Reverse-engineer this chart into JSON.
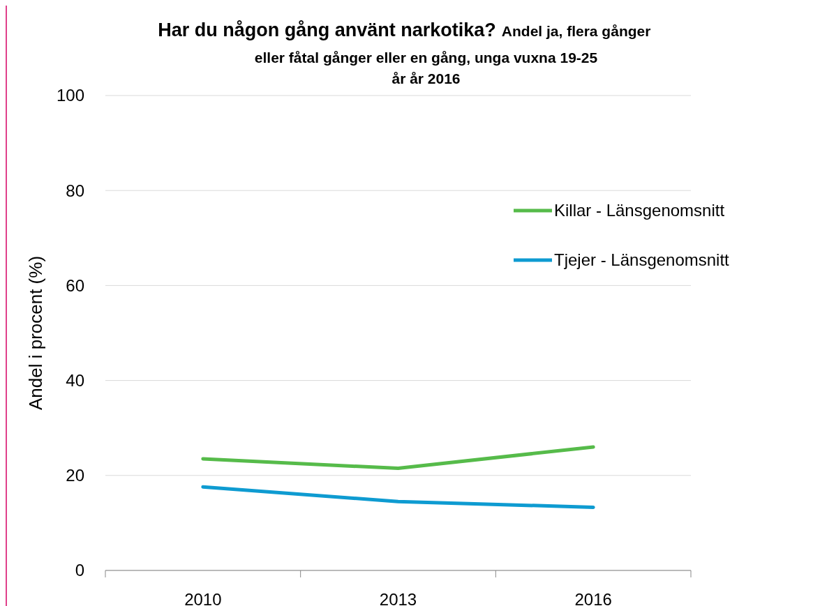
{
  "chart_data": {
    "type": "line",
    "title": "Har du någon gång använt narkotika?",
    "subtitle": "Andel ja, flera gånger eller fåtal gånger eller en gång, unga vuxna 19-25 år år 2016",
    "ylabel": "Andel i procent (%)",
    "categories": [
      "2010",
      "2013",
      "2016"
    ],
    "series": [
      {
        "name": "Killar - Länsgenomsnitt",
        "color": "#56bb4a",
        "values": [
          23.5,
          21.5,
          26.0
        ]
      },
      {
        "name": "Tjejer - Länsgenomsnitt",
        "color": "#0e9bd1",
        "values": [
          17.6,
          14.5,
          13.3
        ]
      }
    ],
    "ylim": [
      0,
      100
    ],
    "yticks": [
      0,
      20,
      40,
      60,
      80,
      100
    ],
    "grid": "y",
    "legend": "right",
    "marker": "none",
    "line_style": "solid"
  }
}
